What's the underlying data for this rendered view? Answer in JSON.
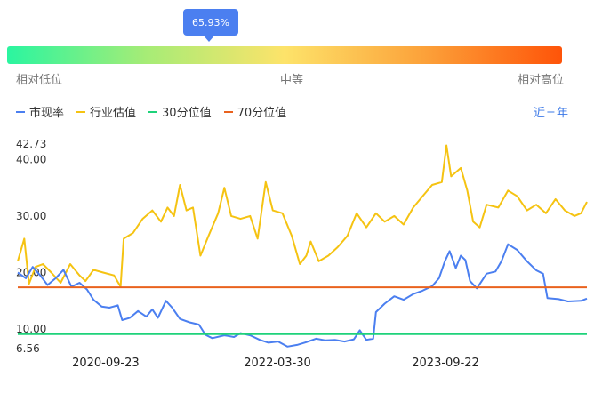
{
  "percentile": {
    "value_label": "65.93%",
    "value": 0.6593,
    "low_label": "相对低位",
    "mid_label": "中等",
    "high_label": "相对高位"
  },
  "legend": {
    "items": [
      {
        "label": "市现率",
        "color": "#4b7ff0"
      },
      {
        "label": "行业估值",
        "color": "#f5c312"
      },
      {
        "label": "30分位值",
        "color": "#1ed27a"
      },
      {
        "label": "70分位值",
        "color": "#e9621e"
      }
    ],
    "period_link": "近三年"
  },
  "chart_data": {
    "type": "line",
    "ylim": [
      6.56,
      42.73
    ],
    "yticks": [
      "42.73",
      "40.00",
      "30.00",
      "20.00",
      "10.00",
      "6.56"
    ],
    "ytick_values": [
      42.73,
      40.0,
      30.0,
      20.0,
      10.0,
      6.56
    ],
    "xtick_labels": [
      "2020-09-23",
      "2022-03-30",
      "2023-09-22"
    ],
    "x_start": "2019-12-15",
    "x_end": "2024-12-20",
    "series": [
      {
        "name": "市现率",
        "color": "#4b7ff0",
        "points": [
          [
            "2019-12-15",
            20.0
          ],
          [
            "2020-01-10",
            19.0
          ],
          [
            "2020-02-01",
            21.0
          ],
          [
            "2020-02-25",
            19.5
          ],
          [
            "2020-03-20",
            17.8
          ],
          [
            "2020-04-15",
            19.0
          ],
          [
            "2020-05-10",
            20.5
          ],
          [
            "2020-06-05",
            17.5
          ],
          [
            "2020-07-01",
            18.2
          ],
          [
            "2020-07-25",
            17.0
          ],
          [
            "2020-08-15",
            15.2
          ],
          [
            "2020-09-10",
            14.0
          ],
          [
            "2020-10-05",
            13.8
          ],
          [
            "2020-11-01",
            14.2
          ],
          [
            "2020-11-15",
            11.6
          ],
          [
            "2020-12-10",
            12.0
          ],
          [
            "2021-01-05",
            13.2
          ],
          [
            "2021-02-01",
            12.2
          ],
          [
            "2021-02-20",
            13.5
          ],
          [
            "2021-03-10",
            12.0
          ],
          [
            "2021-04-05",
            15.0
          ],
          [
            "2021-04-25",
            13.8
          ],
          [
            "2021-05-20",
            11.8
          ],
          [
            "2021-06-20",
            11.2
          ],
          [
            "2021-07-20",
            10.8
          ],
          [
            "2021-08-10",
            9.0
          ],
          [
            "2021-09-01",
            8.4
          ],
          [
            "2021-10-10",
            8.9
          ],
          [
            "2021-11-10",
            8.6
          ],
          [
            "2021-12-01",
            9.3
          ],
          [
            "2022-01-01",
            8.9
          ],
          [
            "2022-02-01",
            8.1
          ],
          [
            "2022-03-01",
            7.6
          ],
          [
            "2022-04-01",
            7.8
          ],
          [
            "2022-05-01",
            6.9
          ],
          [
            "2022-06-01",
            7.2
          ],
          [
            "2022-07-01",
            7.7
          ],
          [
            "2022-08-01",
            8.3
          ],
          [
            "2022-09-01",
            8.0
          ],
          [
            "2022-10-01",
            8.1
          ],
          [
            "2022-11-01",
            7.8
          ],
          [
            "2022-12-01",
            8.2
          ],
          [
            "2022-12-20",
            9.8
          ],
          [
            "2023-01-10",
            8.1
          ],
          [
            "2023-02-01",
            8.3
          ],
          [
            "2023-02-10",
            13.0
          ],
          [
            "2023-03-10",
            14.5
          ],
          [
            "2023-04-10",
            15.8
          ],
          [
            "2023-05-10",
            15.2
          ],
          [
            "2023-06-10",
            16.2
          ],
          [
            "2023-07-10",
            16.8
          ],
          [
            "2023-08-10",
            17.6
          ],
          [
            "2023-09-01",
            19.0
          ],
          [
            "2023-09-20",
            22.0
          ],
          [
            "2023-10-05",
            23.8
          ],
          [
            "2023-10-25",
            20.8
          ],
          [
            "2023-11-10",
            23.0
          ],
          [
            "2023-11-25",
            22.2
          ],
          [
            "2023-12-10",
            18.5
          ],
          [
            "2024-01-01",
            17.2
          ],
          [
            "2024-02-01",
            19.8
          ],
          [
            "2024-03-01",
            20.2
          ],
          [
            "2024-03-20",
            22.0
          ],
          [
            "2024-04-10",
            25.0
          ],
          [
            "2024-05-10",
            24.0
          ],
          [
            "2024-06-10",
            22.0
          ],
          [
            "2024-07-10",
            20.4
          ],
          [
            "2024-08-01",
            19.8
          ],
          [
            "2024-08-15",
            15.5
          ],
          [
            "2024-09-20",
            15.3
          ],
          [
            "2024-10-20",
            14.9
          ],
          [
            "2024-12-01",
            15.0
          ],
          [
            "2024-12-20",
            15.4
          ]
        ]
      },
      {
        "name": "行业估值",
        "color": "#f5c312",
        "points": [
          [
            "2019-12-15",
            22.0
          ],
          [
            "2020-01-05",
            26.0
          ],
          [
            "2020-01-20",
            18.0
          ],
          [
            "2020-02-10",
            21.0
          ],
          [
            "2020-03-05",
            21.5
          ],
          [
            "2020-04-01",
            20.0
          ],
          [
            "2020-05-01",
            18.2
          ],
          [
            "2020-06-01",
            21.5
          ],
          [
            "2020-07-01",
            19.5
          ],
          [
            "2020-07-20",
            18.5
          ],
          [
            "2020-08-15",
            20.5
          ],
          [
            "2020-09-15",
            20.0
          ],
          [
            "2020-10-20",
            19.5
          ],
          [
            "2020-11-10",
            17.5
          ],
          [
            "2020-11-20",
            26.0
          ],
          [
            "2020-12-20",
            27.0
          ],
          [
            "2021-01-20",
            29.5
          ],
          [
            "2021-02-20",
            31.0
          ],
          [
            "2021-03-20",
            29.0
          ],
          [
            "2021-04-10",
            31.5
          ],
          [
            "2021-05-01",
            30.0
          ],
          [
            "2021-05-20",
            35.5
          ],
          [
            "2021-06-10",
            31.0
          ],
          [
            "2021-07-01",
            31.5
          ],
          [
            "2021-07-25",
            23.0
          ],
          [
            "2021-08-20",
            26.5
          ],
          [
            "2021-09-20",
            30.5
          ],
          [
            "2021-10-10",
            35.0
          ],
          [
            "2021-11-01",
            30.0
          ],
          [
            "2021-12-01",
            29.5
          ],
          [
            "2022-01-01",
            30.0
          ],
          [
            "2022-01-25",
            26.0
          ],
          [
            "2022-02-20",
            36.0
          ],
          [
            "2022-03-15",
            31.0
          ],
          [
            "2022-04-15",
            30.5
          ],
          [
            "2022-05-15",
            26.5
          ],
          [
            "2022-06-10",
            21.5
          ],
          [
            "2022-07-01",
            23.0
          ],
          [
            "2022-07-15",
            25.5
          ],
          [
            "2022-08-10",
            22.0
          ],
          [
            "2022-09-10",
            23.0
          ],
          [
            "2022-10-10",
            24.5
          ],
          [
            "2022-11-10",
            26.5
          ],
          [
            "2022-12-10",
            30.5
          ],
          [
            "2023-01-10",
            28.0
          ],
          [
            "2023-02-10",
            30.5
          ],
          [
            "2023-03-10",
            29.0
          ],
          [
            "2023-04-10",
            30.0
          ],
          [
            "2023-05-10",
            28.5
          ],
          [
            "2023-06-10",
            31.5
          ],
          [
            "2023-07-10",
            33.5
          ],
          [
            "2023-08-10",
            35.5
          ],
          [
            "2023-09-10",
            36.0
          ],
          [
            "2023-09-25",
            42.5
          ],
          [
            "2023-10-10",
            37.0
          ],
          [
            "2023-11-10",
            38.5
          ],
          [
            "2023-12-01",
            34.5
          ],
          [
            "2023-12-20",
            29.0
          ],
          [
            "2024-01-10",
            28.0
          ],
          [
            "2024-02-01",
            32.0
          ],
          [
            "2024-03-10",
            31.5
          ],
          [
            "2024-04-10",
            34.5
          ],
          [
            "2024-05-10",
            33.5
          ],
          [
            "2024-06-10",
            31.0
          ],
          [
            "2024-07-10",
            32.0
          ],
          [
            "2024-08-10",
            30.5
          ],
          [
            "2024-09-10",
            33.0
          ],
          [
            "2024-10-10",
            31.0
          ],
          [
            "2024-11-10",
            30.0
          ],
          [
            "2024-12-01",
            30.5
          ],
          [
            "2024-12-20",
            32.5
          ]
        ]
      },
      {
        "name": "30分位值",
        "color": "#1ed27a",
        "points": [
          [
            "2019-12-15",
            9.1
          ],
          [
            "2024-12-20",
            9.1
          ]
        ]
      },
      {
        "name": "70分位值",
        "color": "#e9621e",
        "points": [
          [
            "2019-12-15",
            17.4
          ],
          [
            "2024-12-20",
            17.4
          ]
        ]
      }
    ]
  }
}
